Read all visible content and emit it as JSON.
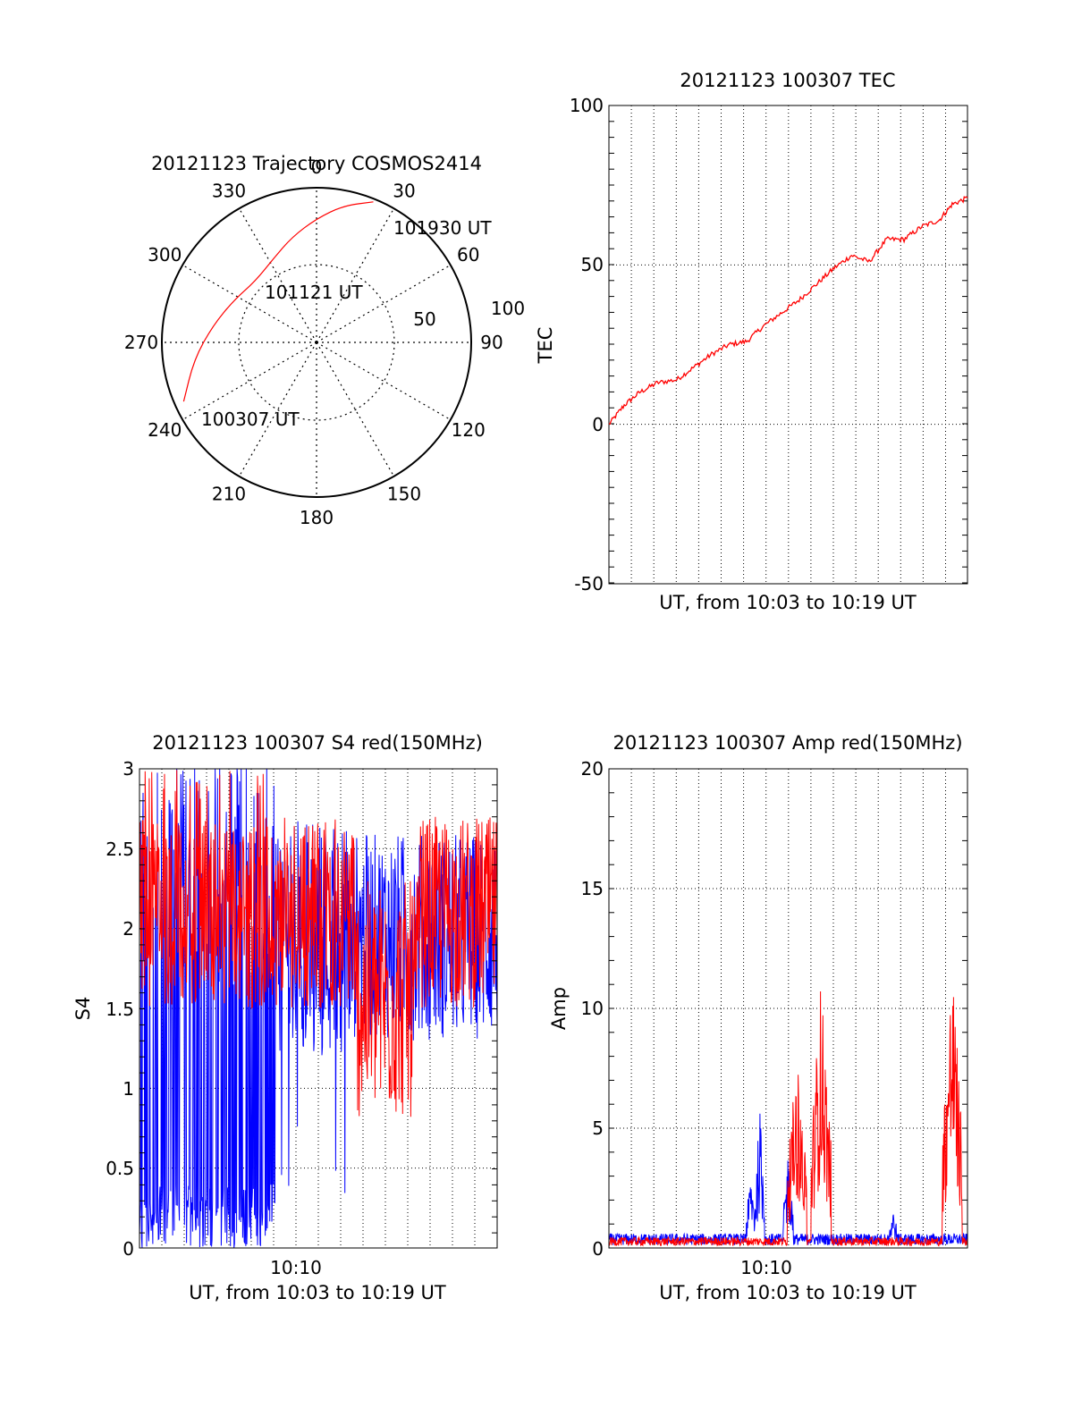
{
  "colors": {
    "red": "#ff0000",
    "blue": "#0000ff"
  },
  "chart_data": [
    {
      "type": "polar",
      "title": "20121123 Trajectory COSMOS2414",
      "azimuth_labels": [
        "0",
        "30",
        "60",
        "90",
        "120",
        "150",
        "180",
        "210",
        "240",
        "270",
        "300",
        "330"
      ],
      "radial_labels": [
        "50",
        "100"
      ],
      "zenith_range": [
        0,
        100
      ],
      "trajectory": {
        "color": "red",
        "points": [
          {
            "az": 246,
            "zen": 94,
            "label": "100307 UT"
          },
          {
            "az": 262,
            "zen": 80
          },
          {
            "az": 279,
            "zen": 68
          },
          {
            "az": 297,
            "zen": 60
          },
          {
            "az": 315,
            "zen": 56
          },
          {
            "az": 333,
            "zen": 61
          },
          {
            "az": 347,
            "zen": 70
          },
          {
            "az": 0,
            "zen": 80
          },
          {
            "az": 11,
            "zen": 90
          },
          {
            "az": 22,
            "zen": 98,
            "label": "101930 UT"
          }
        ],
        "mid_label": "101121 UT"
      }
    },
    {
      "type": "line",
      "title": "20121123 100307 TEC",
      "xlabel": "UT, from 10:03 to 10:19 UT",
      "ylabel": "TEC",
      "ylim": [
        -50,
        100
      ],
      "yticks": [
        "-50",
        "0",
        "50",
        "100"
      ],
      "xlim_minutes": [
        3.1,
        19.5
      ],
      "series": [
        {
          "color": "red",
          "x": [
            3.1,
            3.8,
            4.5,
            5.3,
            6.2,
            7.0,
            7.8,
            8.6,
            9.4,
            10.2,
            11.0,
            11.8,
            12.6,
            13.4,
            14.2,
            15.0,
            15.8,
            16.6,
            17.4,
            18.2,
            18.8,
            19.5
          ],
          "y": [
            0,
            6,
            10,
            13,
            14,
            18,
            22,
            25,
            26,
            31,
            35,
            39,
            44,
            49,
            53,
            51,
            58,
            58,
            62,
            64,
            69,
            71
          ]
        }
      ]
    },
    {
      "type": "line",
      "title": "20121123 100307 S4 red(150MHz)",
      "xlabel": "UT, from 10:03 to 10:19 UT",
      "ylabel": "S4",
      "ylim": [
        0,
        3
      ],
      "yticks": [
        "0",
        "0.5",
        "1",
        "1.5",
        "2",
        "2.5",
        "3"
      ],
      "xticks": [
        "10:10"
      ],
      "series": [
        {
          "color": "blue",
          "profile": "dense oscillation between 0 and 3 from 10:03 to 10:11, then 1.2–2.6 until 10:19"
        },
        {
          "color": "red",
          "profile": "mostly 1.5–2.6, dips to about 0.6–1.1 around 10:13–10:16"
        }
      ]
    },
    {
      "type": "line",
      "title": "20121123 100307 Amp red(150MHz)",
      "xlabel": "UT, from 10:03 to 10:19 UT",
      "ylabel": "Amp",
      "ylim": [
        0,
        20
      ],
      "yticks": [
        "0",
        "5",
        "10",
        "15",
        "20"
      ],
      "xticks": [
        "10:10"
      ],
      "series": [
        {
          "color": "blue",
          "baseline": 0.4,
          "bursts": [
            [
              9.6,
              3.3
            ],
            [
              10.0,
              5.9
            ],
            [
              11.3,
              4.2
            ],
            [
              16.1,
              1.7
            ]
          ]
        },
        {
          "color": "red",
          "baseline": 0.3,
          "bursts": [
            [
              11.7,
              8.1
            ],
            [
              12.8,
              11.3
            ],
            [
              18.8,
              12.1
            ]
          ]
        }
      ]
    }
  ]
}
